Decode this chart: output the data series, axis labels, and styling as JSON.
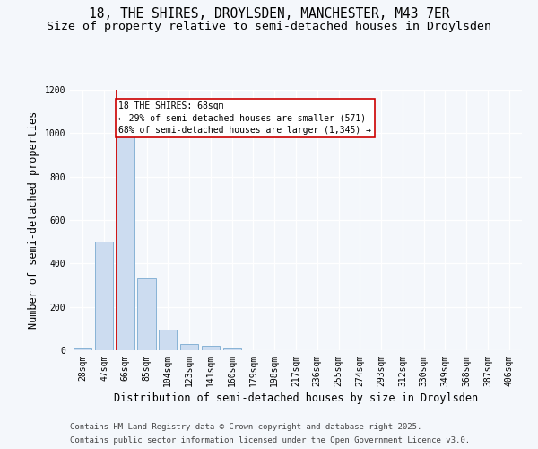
{
  "title_line1": "18, THE SHIRES, DROYLSDEN, MANCHESTER, M43 7ER",
  "title_line2": "Size of property relative to semi-detached houses in Droylsden",
  "xlabel": "Distribution of semi-detached houses by size in Droylsden",
  "ylabel": "Number of semi-detached properties",
  "categories": [
    "28sqm",
    "47sqm",
    "66sqm",
    "85sqm",
    "104sqm",
    "123sqm",
    "141sqm",
    "160sqm",
    "179sqm",
    "198sqm",
    "217sqm",
    "236sqm",
    "255sqm",
    "274sqm",
    "293sqm",
    "312sqm",
    "330sqm",
    "349sqm",
    "368sqm",
    "387sqm",
    "406sqm"
  ],
  "values": [
    10,
    500,
    1000,
    330,
    95,
    30,
    20,
    10,
    0,
    0,
    0,
    0,
    0,
    0,
    0,
    0,
    0,
    0,
    0,
    0,
    0
  ],
  "bar_color": "#ccdcf0",
  "bar_edge_color": "#7aaad0",
  "vline_color": "#cc0000",
  "annotation_text": "18 THE SHIRES: 68sqm\n← 29% of semi-detached houses are smaller (571)\n68% of semi-detached houses are larger (1,345) →",
  "annotation_box_color": "#ffffff",
  "annotation_box_edge": "#cc0000",
  "ylim": [
    0,
    1200
  ],
  "yticks": [
    0,
    200,
    400,
    600,
    800,
    1000,
    1200
  ],
  "footer_line1": "Contains HM Land Registry data © Crown copyright and database right 2025.",
  "footer_line2": "Contains public sector information licensed under the Open Government Licence v3.0.",
  "bg_color": "#f4f7fb",
  "plot_bg_color": "#f4f7fb",
  "title_fontsize": 10.5,
  "subtitle_fontsize": 9.5,
  "tick_fontsize": 7,
  "label_fontsize": 8.5,
  "footer_fontsize": 6.5,
  "vline_pos": 1.57
}
